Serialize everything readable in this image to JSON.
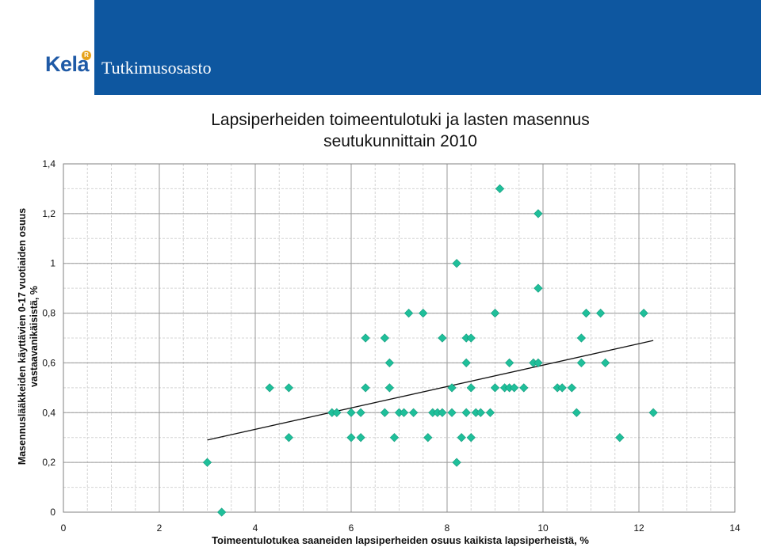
{
  "header": {
    "logo": "Kela",
    "department": "Tutkimusosasto",
    "brand_color": "#0e57a0"
  },
  "chart_data": {
    "type": "scatter",
    "title_line1": "Lapsiperheiden toimeentulotuki ja lasten masennus",
    "title_line2": "seutukunnittain 2010",
    "xlabel": "Toimeentulotukea saaneiden lapsiperheiden osuus kaikista lapsiperheistä, %",
    "ylabel_line1": "Masennuslääkkeiden käyttävien 0-17 vuotiaiden osuus",
    "ylabel_line2": "vastaavanikäisistä, %",
    "xlim": [
      0,
      14
    ],
    "ylim": [
      0,
      1.4
    ],
    "x_ticks": [
      "0",
      "2",
      "4",
      "6",
      "8",
      "10",
      "12",
      "14"
    ],
    "y_ticks": [
      "0",
      "0,2",
      "0,4",
      "0,6",
      "0,8",
      "1",
      "1,2",
      "1,4"
    ],
    "grid": true,
    "marker_color": "#1fbf9a",
    "trendline": {
      "x": [
        3.0,
        12.3
      ],
      "y": [
        0.29,
        0.69
      ]
    },
    "points": [
      [
        3.0,
        0.2
      ],
      [
        3.3,
        0.0
      ],
      [
        4.3,
        0.5
      ],
      [
        4.7,
        0.5
      ],
      [
        4.7,
        0.3
      ],
      [
        5.6,
        0.4
      ],
      [
        5.7,
        0.4
      ],
      [
        6.0,
        0.4
      ],
      [
        6.0,
        0.3
      ],
      [
        6.2,
        0.4
      ],
      [
        6.2,
        0.3
      ],
      [
        6.3,
        0.7
      ],
      [
        6.3,
        0.5
      ],
      [
        6.7,
        0.7
      ],
      [
        6.7,
        0.4
      ],
      [
        6.8,
        0.6
      ],
      [
        6.8,
        0.5
      ],
      [
        6.9,
        0.3
      ],
      [
        7.0,
        0.4
      ],
      [
        7.1,
        0.4
      ],
      [
        7.2,
        0.8
      ],
      [
        7.3,
        0.4
      ],
      [
        7.5,
        0.8
      ],
      [
        7.6,
        0.3
      ],
      [
        7.7,
        0.4
      ],
      [
        7.8,
        0.4
      ],
      [
        7.9,
        0.7
      ],
      [
        7.9,
        0.4
      ],
      [
        8.1,
        0.5
      ],
      [
        8.1,
        0.4
      ],
      [
        8.2,
        1.0
      ],
      [
        8.2,
        0.2
      ],
      [
        8.3,
        0.3
      ],
      [
        8.4,
        0.7
      ],
      [
        8.4,
        0.6
      ],
      [
        8.4,
        0.4
      ],
      [
        8.5,
        0.7
      ],
      [
        8.5,
        0.5
      ],
      [
        8.5,
        0.3
      ],
      [
        8.6,
        0.4
      ],
      [
        8.7,
        0.4
      ],
      [
        8.9,
        0.4
      ],
      [
        9.0,
        0.8
      ],
      [
        9.0,
        0.5
      ],
      [
        9.1,
        1.3
      ],
      [
        9.2,
        0.5
      ],
      [
        9.3,
        0.6
      ],
      [
        9.3,
        0.5
      ],
      [
        9.4,
        0.5
      ],
      [
        9.6,
        0.5
      ],
      [
        9.8,
        0.6
      ],
      [
        9.9,
        1.2
      ],
      [
        9.9,
        0.9
      ],
      [
        9.9,
        0.6
      ],
      [
        10.3,
        0.5
      ],
      [
        10.4,
        0.5
      ],
      [
        10.6,
        0.5
      ],
      [
        10.7,
        0.4
      ],
      [
        10.8,
        0.7
      ],
      [
        10.8,
        0.6
      ],
      [
        10.9,
        0.8
      ],
      [
        11.2,
        0.8
      ],
      [
        11.3,
        0.6
      ],
      [
        11.6,
        0.3
      ],
      [
        12.1,
        0.8
      ],
      [
        12.3,
        0.4
      ]
    ]
  }
}
